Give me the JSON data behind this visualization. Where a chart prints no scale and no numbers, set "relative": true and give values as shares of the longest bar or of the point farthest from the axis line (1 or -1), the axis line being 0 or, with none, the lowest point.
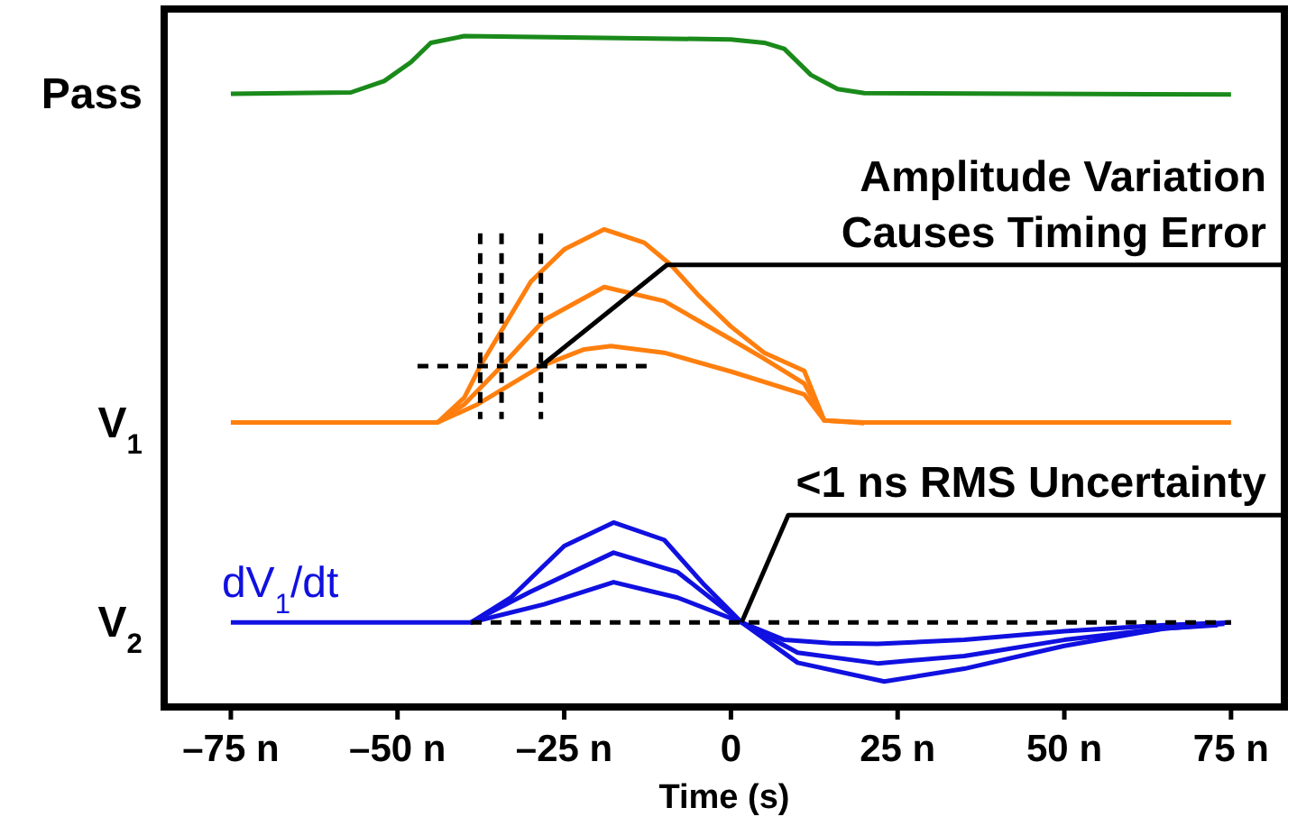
{
  "chart_data": {
    "type": "line",
    "relative": true,
    "xlabel": "Time (s)",
    "xlim": [
      -85,
      83
    ],
    "xticks": [
      {
        "value": -75,
        "label": "–75 n"
      },
      {
        "value": -50,
        "label": "–50 n"
      },
      {
        "value": -25,
        "label": "–25 n"
      },
      0,
      {
        "value": 25,
        "label": "25 n"
      },
      {
        "value": 50,
        "label": "50 n"
      },
      {
        "value": 75,
        "label": "75 n"
      }
    ],
    "grid": false,
    "line_style": "solid",
    "marker": "none",
    "annotations": [
      "Pass",
      "V$_{1}$",
      "V$_{2}$",
      {
        "text": "Amplitude Variation\nCauses Timing Error",
        "x": 83,
        "y": 0.659
      },
      {
        "text": "<1 ns RMS Uncertainty",
        "x": 83,
        "y": 0.286
      }
    ],
    "series": [
      {
        "color": "#1a8a1a",
        "x": [
          -75,
          -57,
          -52,
          -48,
          -45,
          -40,
          0,
          5,
          8,
          12,
          16,
          20,
          75
        ],
        "values": [
          0.914,
          0.916,
          0.933,
          0.961,
          0.99,
          1,
          0.995,
          0.99,
          0.981,
          0.942,
          0.921,
          0.915,
          0.913
        ]
      },
      {
        "color": "#ff7f0e",
        "x": [
          -75,
          -44,
          -40,
          -37.6,
          -30,
          -25,
          -19,
          -13,
          -9,
          -5,
          0,
          5,
          11,
          14,
          20,
          75
        ],
        "values": [
          0.424,
          0.424,
          0.461,
          0.508,
          0.634,
          0.682,
          0.712,
          0.692,
          0.659,
          0.615,
          0.567,
          0.528,
          0.501,
          0.427,
          0.424,
          0.424
        ]
      },
      {
        "color": "#ff7f0e",
        "x": [
          -44,
          -40,
          -34.4,
          -28,
          -19,
          -10,
          0,
          5,
          11,
          14,
          20
        ],
        "values": [
          0.424,
          0.451,
          0.508,
          0.577,
          0.626,
          0.605,
          0.548,
          0.519,
          0.482,
          0.427,
          0.423
        ]
      },
      {
        "color": "#ff7f0e",
        "x": [
          -44,
          -38,
          -28.5,
          -22,
          -18,
          -10,
          0,
          11,
          14
        ],
        "values": [
          0.424,
          0.451,
          0.508,
          0.533,
          0.538,
          0.528,
          0.5,
          0.466,
          0.427
        ]
      },
      {
        "name": "dV$_{1}$/dt",
        "color": "#1010e0",
        "x": [
          -75,
          -39,
          -33,
          -25,
          -17.6,
          -10,
          -4,
          1.6,
          8,
          15,
          22,
          35,
          50,
          65,
          75
        ],
        "values": [
          0.126,
          0.126,
          0.163,
          0.24,
          0.275,
          0.249,
          0.182,
          0.126,
          0.1,
          0.095,
          0.094,
          0.1,
          0.113,
          0.122,
          0.126
        ]
      },
      {
        "color": "#1010e0",
        "x": [
          -39,
          -30,
          -17.6,
          -8,
          1.6,
          10,
          22,
          35,
          50,
          65,
          74
        ],
        "values": [
          0.126,
          0.172,
          0.23,
          0.201,
          0.126,
          0.081,
          0.065,
          0.076,
          0.1,
          0.117,
          0.124
        ]
      },
      {
        "color": "#1010e0",
        "x": [
          -39,
          -28,
          -17.6,
          -8,
          1.6,
          10,
          23,
          35,
          50,
          65,
          73
        ],
        "values": [
          0.126,
          0.153,
          0.186,
          0.163,
          0.126,
          0.066,
          0.038,
          0.057,
          0.091,
          0.117,
          0.122
        ]
      },
      {
        "color": "#000000",
        "line_style": "dashed",
        "x": [
          -39,
          75
        ],
        "values": [
          0.126,
          0.126
        ]
      },
      {
        "color": "#000000",
        "line_style": "dashed",
        "x": [
          -47,
          -11.7
        ],
        "values": [
          0.508,
          0.508
        ]
      },
      {
        "color": "#000000",
        "line_style": "dashed",
        "x": [
          -37.6,
          -37.6
        ],
        "values": [
          0.706,
          0.429
        ]
      },
      {
        "color": "#000000",
        "line_style": "dashed",
        "x": [
          -34.4,
          -34.4
        ],
        "values": [
          0.706,
          0.429
        ]
      },
      {
        "color": "#000000",
        "line_style": "dashed",
        "x": [
          -28.5,
          -28.5
        ],
        "values": [
          0.706,
          0.429
        ]
      },
      {
        "color": "#000000",
        "x": [
          -28.5,
          -9.6,
          83
        ],
        "values": [
          0.508,
          0.659,
          0.659
        ]
      },
      {
        "color": "#000000",
        "x": [
          1.6,
          8.6,
          83
        ],
        "values": [
          0.126,
          0.286,
          0.286
        ]
      }
    ]
  }
}
